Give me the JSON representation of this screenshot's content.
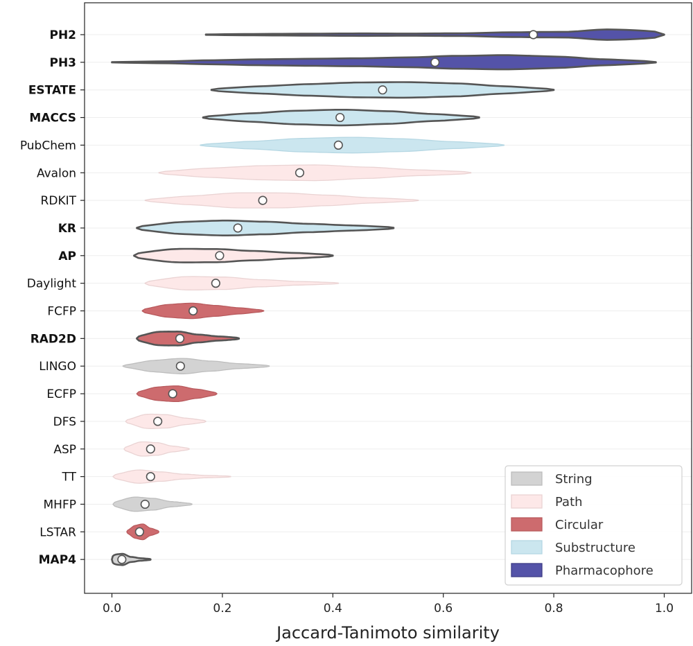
{
  "chart_data": {
    "type": "violin",
    "orientation": "horizontal",
    "title": "",
    "xlabel": "Jaccard-Tanimoto similarity",
    "ylabel": "",
    "xlim": [
      -0.05,
      1.05
    ],
    "xticks": [
      "0.0",
      "0.2",
      "0.4",
      "0.6",
      "0.8",
      "1.0"
    ],
    "grid": true,
    "legend_position": "bottom-right",
    "classes": [
      {
        "name": "String",
        "color": "#d3d3d3",
        "edge": "#bdbdbd"
      },
      {
        "name": "Path",
        "color": "#fde8e8",
        "edge": "#ead3d3"
      },
      {
        "name": "Circular",
        "color": "#cd6b6e",
        "edge": "#b85a5d"
      },
      {
        "name": "Substructure",
        "color": "#cbe6ef",
        "edge": "#b5d7e3"
      },
      {
        "name": "Pharmacophore",
        "color": "#5453a8",
        "edge": "#3d3c85"
      }
    ],
    "series": [
      {
        "name": "PH2",
        "class": "Pharmacophore",
        "bold": true,
        "min": 0.17,
        "max": 1.0,
        "median": 0.763,
        "width": [
          0.05,
          0.1,
          0.12,
          0.14,
          0.12,
          0.15,
          0.3,
          0.4,
          0.95,
          1.0
        ]
      },
      {
        "name": "PH3",
        "class": "Pharmacophore",
        "bold": true,
        "min": 0.0,
        "max": 0.985,
        "median": 0.585,
        "width": [
          0.05,
          0.15,
          0.3,
          0.4,
          0.45,
          0.5,
          0.62,
          0.85,
          1.0,
          0.9,
          0.55,
          0.3
        ]
      },
      {
        "name": "ESTATE",
        "class": "Substructure",
        "bold": true,
        "min": 0.18,
        "max": 0.8,
        "median": 0.49,
        "width": [
          0.35,
          0.6,
          0.8,
          0.95,
          1.0,
          0.9,
          0.6,
          0.3
        ]
      },
      {
        "name": "MACCS",
        "class": "Substructure",
        "bold": true,
        "min": 0.165,
        "max": 0.665,
        "median": 0.413,
        "width": [
          0.35,
          0.65,
          0.9,
          1.0,
          0.85,
          0.55,
          0.3
        ]
      },
      {
        "name": "PubChem",
        "class": "Substructure",
        "bold": false,
        "min": 0.16,
        "max": 0.71,
        "median": 0.41,
        "width": [
          0.3,
          0.6,
          0.9,
          1.0,
          0.85,
          0.55,
          0.3
        ]
      },
      {
        "name": "Avalon",
        "class": "Path",
        "bold": false,
        "min": 0.085,
        "max": 0.65,
        "median": 0.34,
        "width": [
          0.4,
          0.75,
          0.95,
          1.0,
          0.75,
          0.45,
          0.3
        ]
      },
      {
        "name": "RDKIT",
        "class": "Path",
        "bold": false,
        "min": 0.06,
        "max": 0.555,
        "median": 0.273,
        "width": [
          0.35,
          0.7,
          1.0,
          0.95,
          0.7,
          0.4,
          0.2
        ]
      },
      {
        "name": "KR",
        "class": "Substructure",
        "bold": true,
        "min": 0.045,
        "max": 0.51,
        "median": 0.228,
        "width": [
          0.55,
          0.95,
          1.0,
          0.8,
          0.55,
          0.4,
          0.25
        ]
      },
      {
        "name": "AP",
        "class": "Path",
        "bold": true,
        "min": 0.04,
        "max": 0.4,
        "median": 0.195,
        "width": [
          0.7,
          1.0,
          0.85,
          0.6,
          0.4,
          0.25
        ]
      },
      {
        "name": "Daylight",
        "class": "Path",
        "bold": false,
        "min": 0.06,
        "max": 0.41,
        "median": 0.188,
        "width": [
          0.6,
          1.0,
          0.8,
          0.45,
          0.25,
          0.15
        ]
      },
      {
        "name": "FCFP",
        "class": "Circular",
        "bold": false,
        "min": 0.055,
        "max": 0.275,
        "median": 0.147,
        "width": [
          0.55,
          0.95,
          1.0,
          0.7,
          0.45,
          0.25
        ]
      },
      {
        "name": "RAD2D",
        "class": "Circular",
        "bold": true,
        "min": 0.045,
        "max": 0.23,
        "median": 0.123,
        "width": [
          0.65,
          1.0,
          0.9,
          0.5,
          0.3,
          0.2
        ]
      },
      {
        "name": "LINGO",
        "class": "String",
        "bold": false,
        "min": 0.02,
        "max": 0.285,
        "median": 0.124,
        "width": [
          0.35,
          0.85,
          1.0,
          0.65,
          0.35,
          0.2
        ]
      },
      {
        "name": "ECFP",
        "class": "Circular",
        "bold": false,
        "min": 0.045,
        "max": 0.19,
        "median": 0.11,
        "width": [
          0.55,
          0.95,
          1.0,
          0.65,
          0.35
        ]
      },
      {
        "name": "DFS",
        "class": "Path",
        "bold": false,
        "min": 0.025,
        "max": 0.17,
        "median": 0.083,
        "width": [
          0.45,
          1.0,
          0.85,
          0.45,
          0.25
        ]
      },
      {
        "name": "ASP",
        "class": "Path",
        "bold": false,
        "min": 0.022,
        "max": 0.14,
        "median": 0.07,
        "width": [
          0.5,
          1.0,
          0.8,
          0.4,
          0.2
        ]
      },
      {
        "name": "TT",
        "class": "Path",
        "bold": false,
        "min": 0.002,
        "max": 0.215,
        "median": 0.07,
        "width": [
          0.6,
          1.0,
          0.6,
          0.3,
          0.15,
          0.1
        ]
      },
      {
        "name": "MHFP",
        "class": "String",
        "bold": false,
        "min": 0.002,
        "max": 0.145,
        "median": 0.06,
        "width": [
          0.6,
          1.0,
          0.75,
          0.35,
          0.2
        ]
      },
      {
        "name": "LSTAR",
        "class": "Circular",
        "bold": false,
        "min": 0.027,
        "max": 0.085,
        "median": 0.05,
        "width": [
          0.4,
          0.9,
          1.0,
          0.5,
          0.3
        ]
      },
      {
        "name": "MAP4",
        "class": "String",
        "bold": true,
        "min": 0.0,
        "max": 0.07,
        "median": 0.018,
        "width": [
          1.0,
          0.8,
          0.3,
          0.15,
          0.1
        ]
      }
    ]
  }
}
